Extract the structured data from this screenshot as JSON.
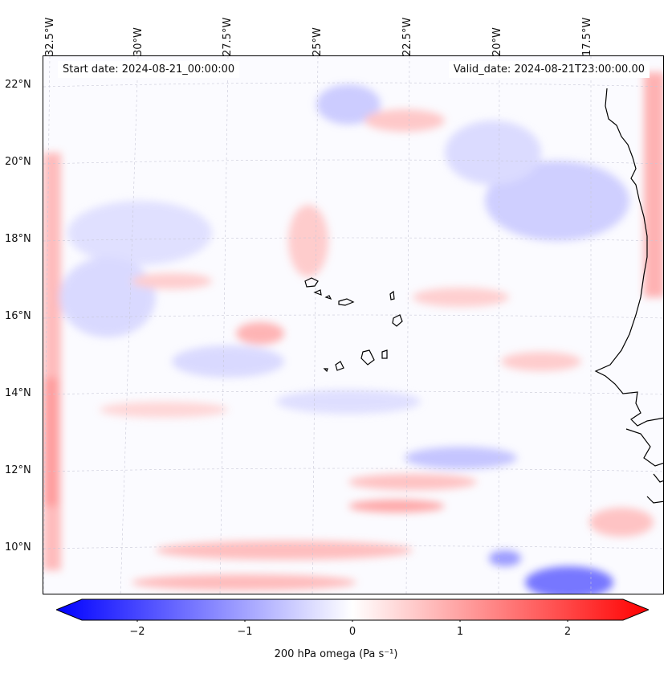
{
  "map": {
    "start_date": "Start date: 2024-08-21_00:00:00",
    "valid_date": "Valid_date: 2024-08-21T23:00:00.00",
    "lon_labels": [
      "32.5°W",
      "30°W",
      "27.5°W",
      "25°W",
      "22.5°W",
      "20°W",
      "17.5°W"
    ],
    "lat_labels": [
      "22°N",
      "20°N",
      "18°N",
      "16°N",
      "14°N",
      "12°N",
      "10°N"
    ],
    "colors": {
      "negative": "#0000ff",
      "zero": "#ffffff",
      "positive": "#ff0000",
      "coast": "#000000"
    }
  },
  "colorbar": {
    "ticks": [
      "−2",
      "−1",
      "0",
      "1",
      "2"
    ],
    "range": [
      -2.6,
      2.6
    ],
    "label": "200 hPa omega (Pa s⁻¹)"
  }
}
